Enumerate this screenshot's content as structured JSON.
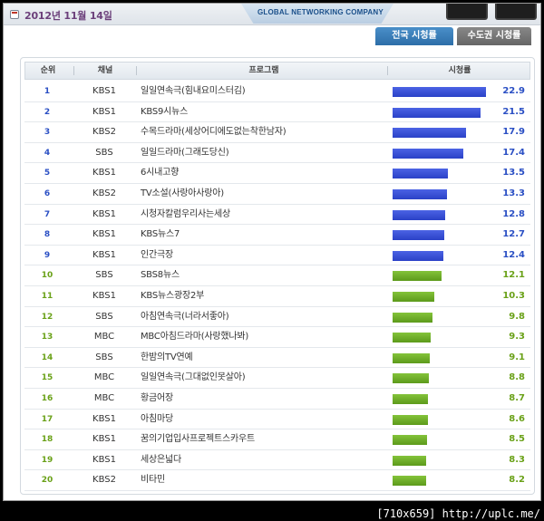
{
  "header": {
    "date": "2012년 11월 14일",
    "brand": "GLOBAL NETWORKING COMPANY"
  },
  "tabs": [
    {
      "label": "전국 시청률",
      "active": true
    },
    {
      "label": "수도권 시청률",
      "active": false
    }
  ],
  "table": {
    "columns": {
      "rank": "순위",
      "channel": "채널",
      "program": "프로그램",
      "rating": "시청률"
    },
    "max_rating": 22.9,
    "rows": [
      {
        "rank": "1",
        "channel": "KBS1",
        "program": "일일연속극(힘내요미스터김)",
        "rating": "22.9",
        "value": 22.9,
        "color": "blue"
      },
      {
        "rank": "2",
        "channel": "KBS1",
        "program": "KBS9시뉴스",
        "rating": "21.5",
        "value": 21.5,
        "color": "blue"
      },
      {
        "rank": "3",
        "channel": "KBS2",
        "program": "수목드라마(세상어디에도없는착한남자)",
        "rating": "17.9",
        "value": 17.9,
        "color": "blue"
      },
      {
        "rank": "4",
        "channel": "SBS",
        "program": "일일드라마(그래도당신)",
        "rating": "17.4",
        "value": 17.4,
        "color": "blue"
      },
      {
        "rank": "5",
        "channel": "KBS1",
        "program": "6시내고향",
        "rating": "13.5",
        "value": 13.5,
        "color": "blue"
      },
      {
        "rank": "6",
        "channel": "KBS2",
        "program": "TV소설(사랑아사랑아)",
        "rating": "13.3",
        "value": 13.3,
        "color": "blue"
      },
      {
        "rank": "7",
        "channel": "KBS1",
        "program": "시청자칼럼우리사는세상",
        "rating": "12.8",
        "value": 12.8,
        "color": "blue"
      },
      {
        "rank": "8",
        "channel": "KBS1",
        "program": "KBS뉴스7",
        "rating": "12.7",
        "value": 12.7,
        "color": "blue"
      },
      {
        "rank": "9",
        "channel": "KBS1",
        "program": "인간극장",
        "rating": "12.4",
        "value": 12.4,
        "color": "blue"
      },
      {
        "rank": "10",
        "channel": "SBS",
        "program": "SBS8뉴스",
        "rating": "12.1",
        "value": 12.1,
        "color": "green"
      },
      {
        "rank": "11",
        "channel": "KBS1",
        "program": "KBS뉴스광장2부",
        "rating": "10.3",
        "value": 10.3,
        "color": "green"
      },
      {
        "rank": "12",
        "channel": "SBS",
        "program": "아침연속극(너라서좋아)",
        "rating": "9.8",
        "value": 9.8,
        "color": "green"
      },
      {
        "rank": "13",
        "channel": "MBC",
        "program": "MBC아침드라마(사랑했나봐)",
        "rating": "9.3",
        "value": 9.3,
        "color": "green"
      },
      {
        "rank": "14",
        "channel": "SBS",
        "program": "한밤의TV연예",
        "rating": "9.1",
        "value": 9.1,
        "color": "green"
      },
      {
        "rank": "15",
        "channel": "MBC",
        "program": "일일연속극(그대없인못살아)",
        "rating": "8.8",
        "value": 8.8,
        "color": "green"
      },
      {
        "rank": "16",
        "channel": "MBC",
        "program": "황금어장",
        "rating": "8.7",
        "value": 8.7,
        "color": "green"
      },
      {
        "rank": "17",
        "channel": "KBS1",
        "program": "아침마당",
        "rating": "8.6",
        "value": 8.6,
        "color": "green"
      },
      {
        "rank": "18",
        "channel": "KBS1",
        "program": "꿈의기업입사프로젝트스카우트",
        "rating": "8.5",
        "value": 8.5,
        "color": "green"
      },
      {
        "rank": "19",
        "channel": "KBS1",
        "program": "세상은넓다",
        "rating": "8.3",
        "value": 8.3,
        "color": "green"
      },
      {
        "rank": "20",
        "channel": "KBS2",
        "program": "비타민",
        "rating": "8.2",
        "value": 8.2,
        "color": "green"
      }
    ]
  },
  "footer": "[710x659] http://uplc.me/"
}
